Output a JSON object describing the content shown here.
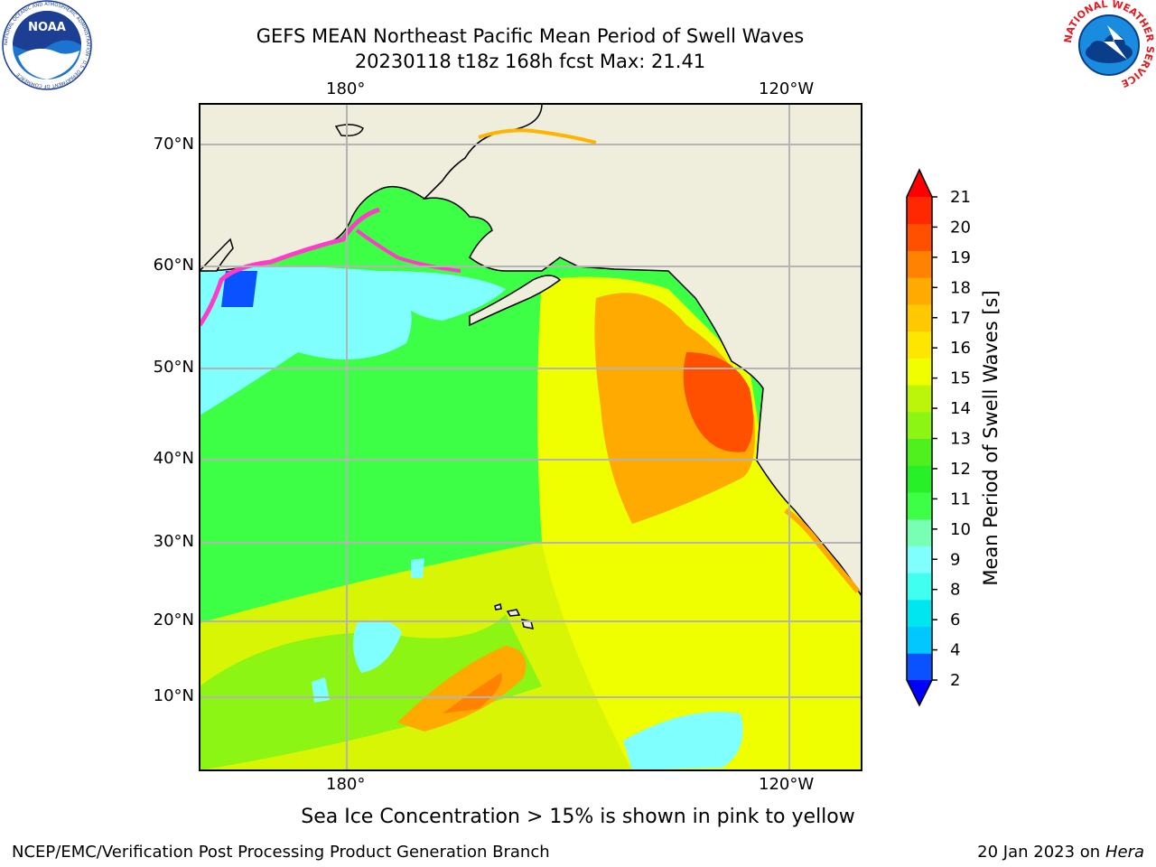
{
  "title_line1": "GEFS MEAN Northeast Pacific Mean Period of Swell Waves",
  "title_line2": "20230118 t18z 168h fcst   Max: 21.41",
  "logos": {
    "left": {
      "icon": "noaa-logo-icon",
      "text": "NOAA",
      "ring_text": "NATIONAL OCEANIC AND ATMOSPHERIC ADMINISTRATION · U.S. DEPARTMENT OF COMMERCE"
    },
    "right": {
      "icon": "nws-logo-icon",
      "ring_text": "NATIONAL WEATHER SERVICE"
    }
  },
  "map": {
    "lon_labels_top": [
      "180°",
      "120°W"
    ],
    "lon_labels_bottom": [
      "180°",
      "120°W"
    ],
    "lat_labels": [
      "70°N",
      "60°N",
      "50°N",
      "40°N",
      "30°N",
      "20°N",
      "10°N"
    ],
    "colors": {
      "land": "#efeddc",
      "grid": "#b4b4b4",
      "coast": "#000000"
    }
  },
  "colorbar": {
    "label": "Mean Period of Swell Waves [s]",
    "ticks": [
      "2",
      "4",
      "6",
      "8",
      "9",
      "10",
      "11",
      "12",
      "13",
      "14",
      "15",
      "16",
      "17",
      "18",
      "19",
      "20",
      "21"
    ],
    "colors": [
      "#0a52ff",
      "#00c8ff",
      "#00e6f0",
      "#40fff0",
      "#80ffff",
      "#78ffb4",
      "#3cff46",
      "#28f028",
      "#50f01e",
      "#8cf514",
      "#bcf50a",
      "#f0ff00",
      "#ffe600",
      "#ffc800",
      "#ffaa00",
      "#ff8200",
      "#ff5000",
      "#ff2800"
    ],
    "under_color": "#0000ff",
    "over_color": "#ff0000"
  },
  "caption": "Sea Ice Concentration > 15% is shown in pink to yellow",
  "footer_left": "NCEP/EMC/Verification Post Processing Product Generation Branch",
  "footer_right_date": "20 Jan 2023 on",
  "footer_right_host": "Hera"
}
